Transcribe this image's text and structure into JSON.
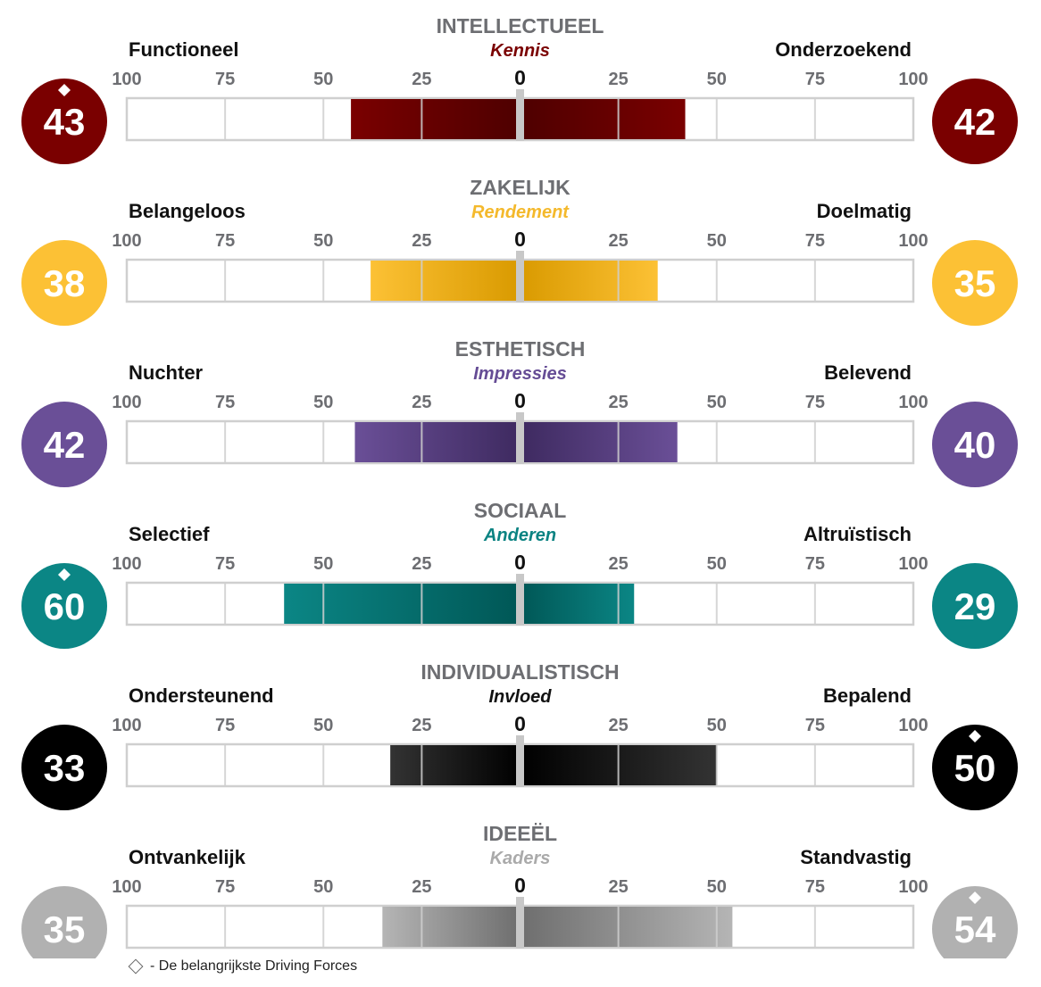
{
  "chart_data": {
    "type": "bar",
    "axis": {
      "ticks": [
        100,
        75,
        50,
        25,
        0,
        25,
        50,
        75,
        100
      ],
      "range_left": [
        100,
        0
      ],
      "range_right": [
        0,
        100
      ]
    },
    "rows": [
      {
        "title": "INTELLECTUEEL",
        "subtitle": "Kennis",
        "left_label": "Functioneel",
        "right_label": "Onderzoekend",
        "left_value": 43,
        "right_value": 42,
        "left_key": true,
        "right_key": false,
        "color": "#7a0000",
        "color_dark": "#4e0000",
        "subtitle_color": "#7a0000"
      },
      {
        "title": "ZAKELIJK",
        "subtitle": "Rendement",
        "left_label": "Belangeloos",
        "right_label": "Doelmatig",
        "left_value": 38,
        "right_value": 35,
        "left_key": false,
        "right_key": false,
        "color": "#fcc135",
        "color_dark": "#d99a00",
        "subtitle_color": "#f4b92c"
      },
      {
        "title": "ESTHETISCH",
        "subtitle": "Impressies",
        "left_label": "Nuchter",
        "right_label": "Belevend",
        "left_value": 42,
        "right_value": 40,
        "left_key": false,
        "right_key": false,
        "color": "#6a4f97",
        "color_dark": "#3e2a60",
        "subtitle_color": "#654c95"
      },
      {
        "title": "SOCIAAL",
        "subtitle": "Anderen",
        "left_label": "Selectief",
        "right_label": "Altruïstisch",
        "left_value": 60,
        "right_value": 29,
        "left_key": true,
        "right_key": false,
        "color": "#0b8685",
        "color_dark": "#005756",
        "subtitle_color": "#0b8382"
      },
      {
        "title": "INDIVIDUALISTISCH",
        "subtitle": "Invloed",
        "left_label": "Ondersteunend",
        "right_label": "Bepalend",
        "left_value": 33,
        "right_value": 50,
        "left_key": false,
        "right_key": true,
        "color": "#333333",
        "color_dark": "#000000",
        "subtitle_color": "#111111"
      },
      {
        "title": "IDEEËL",
        "subtitle": "Kaders",
        "left_label": "Ontvankelijk",
        "right_label": "Standvastig",
        "left_value": 35,
        "right_value": 54,
        "left_key": false,
        "right_key": true,
        "color": "#b5b5b5",
        "color_dark": "#6e6e6e",
        "subtitle_color": "#aaaaaa"
      }
    ],
    "badge_colors": [
      "#7a0000",
      "#fcc135",
      "#6a4f97",
      "#0b8685",
      "#000000",
      "#b1b1b1"
    ]
  },
  "legend": {
    "text": "- De belangrijkste Driving Forces",
    "icon": "diamond-outline-icon"
  }
}
